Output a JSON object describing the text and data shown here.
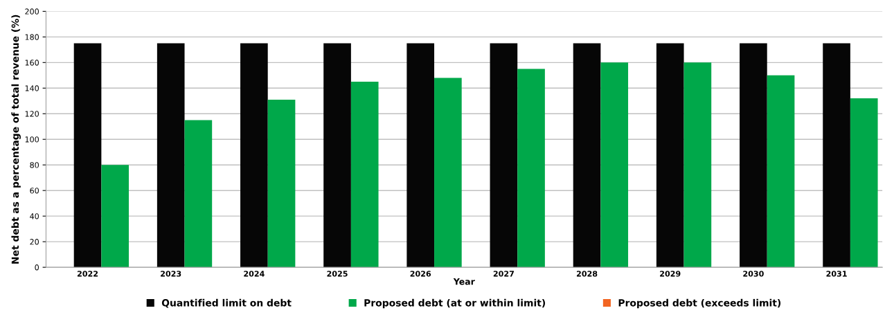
{
  "chart_data": {
    "type": "bar",
    "xlabel": "Year",
    "ylabel": "Net debt as a percentage of total revenue (%)",
    "categories": [
      "2022",
      "2023",
      "2024",
      "2025",
      "2026",
      "2027",
      "2028",
      "2029",
      "2030",
      "2031"
    ],
    "series": [
      {
        "name": "Quantified limit on debt",
        "color": "#060606",
        "values": [
          175,
          175,
          175,
          175,
          175,
          175,
          175,
          175,
          175,
          175
        ]
      },
      {
        "name": "Proposed debt (at or within limit)",
        "color": "#00a84a",
        "values": [
          80,
          115,
          131,
          145,
          148,
          155,
          160,
          160,
          150,
          132
        ]
      },
      {
        "name": "Proposed debt (exceeds limit)",
        "color": "#f26522",
        "values": [
          null,
          null,
          null,
          null,
          null,
          null,
          null,
          null,
          null,
          null
        ]
      }
    ],
    "ylim": [
      0,
      200
    ],
    "yticks": [
      0,
      20,
      40,
      60,
      80,
      100,
      120,
      140,
      160,
      180,
      200
    ],
    "grid": "y",
    "legend": "bottom"
  }
}
